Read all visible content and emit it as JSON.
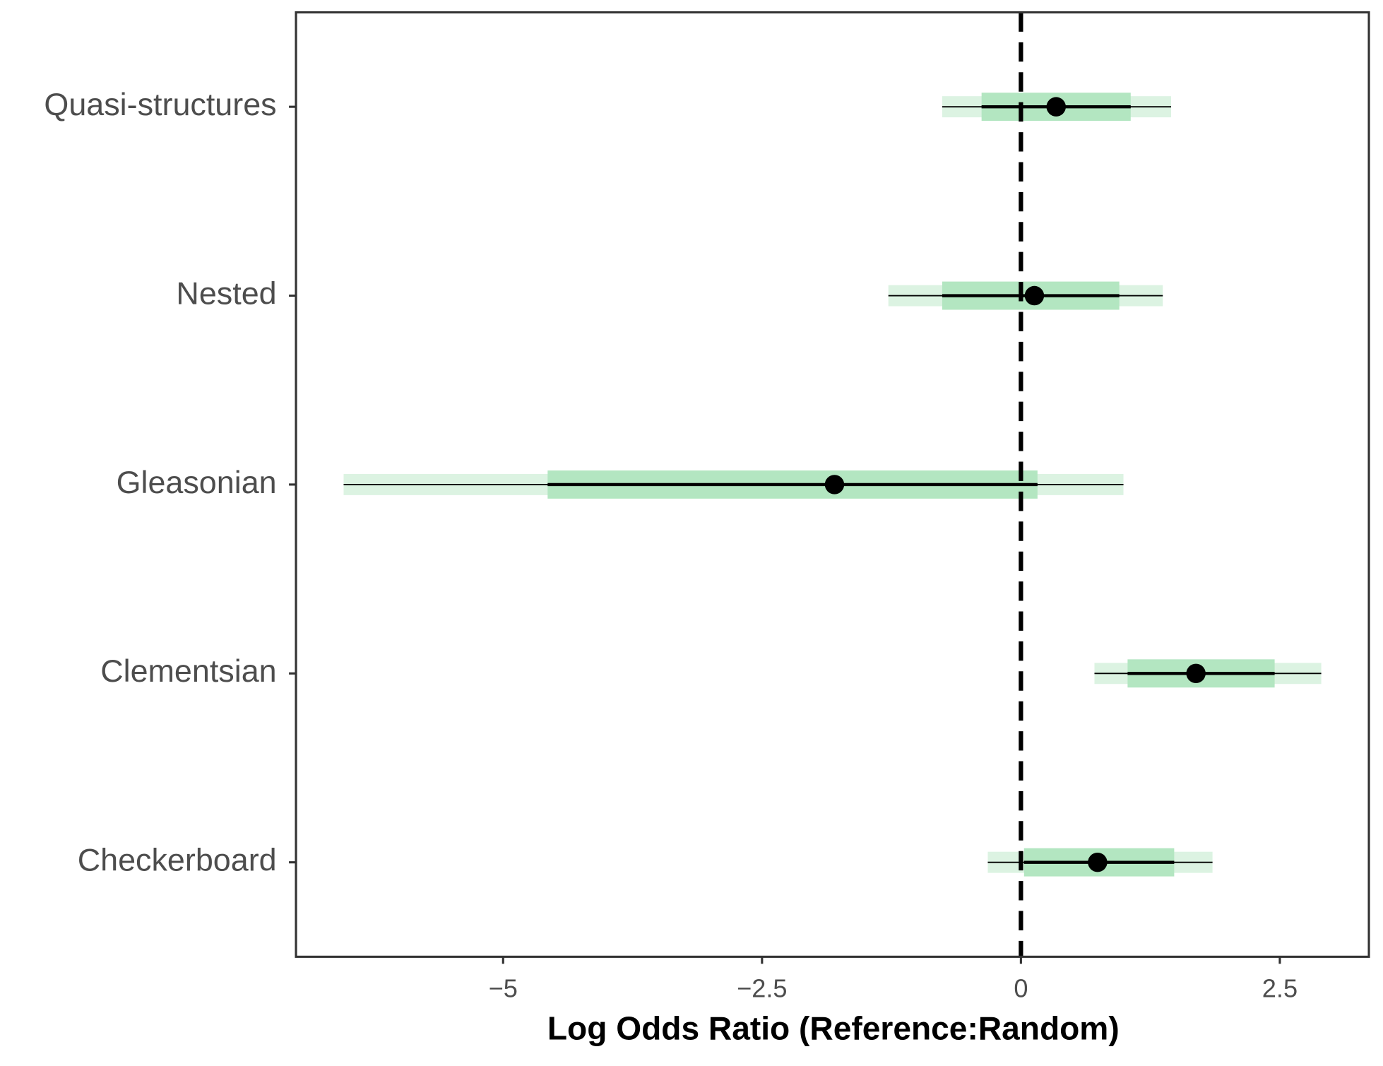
{
  "chart_data": {
    "type": "forest",
    "x_label": "Log Odds Ratio (Reference:Random)",
    "categories": [
      "Quasi-structures",
      "Nested",
      "Gleasonian",
      "Clementsian",
      "Checkerboard"
    ],
    "values": [
      0.34,
      0.13,
      -1.8,
      1.69,
      0.74
    ],
    "inner_low": [
      -0.38,
      -0.76,
      -4.57,
      1.03,
      0.03
    ],
    "inner_high": [
      1.06,
      0.95,
      0.16,
      2.45,
      1.48
    ],
    "outer_low": [
      -0.76,
      -1.28,
      -6.54,
      0.71,
      -0.32
    ],
    "outer_high": [
      1.45,
      1.37,
      0.99,
      2.9,
      1.85
    ],
    "point_color": "#000000",
    "inner_color": "#b3e6c1",
    "outer_color": "#dcf3e2",
    "reference_line": 0,
    "xlim": [
      -7.0,
      3.36
    ],
    "xticks": [
      {
        "value": -5,
        "label": "−5"
      },
      {
        "value": -2.5,
        "label": "−2.5"
      },
      0,
      2.5
    ]
  }
}
